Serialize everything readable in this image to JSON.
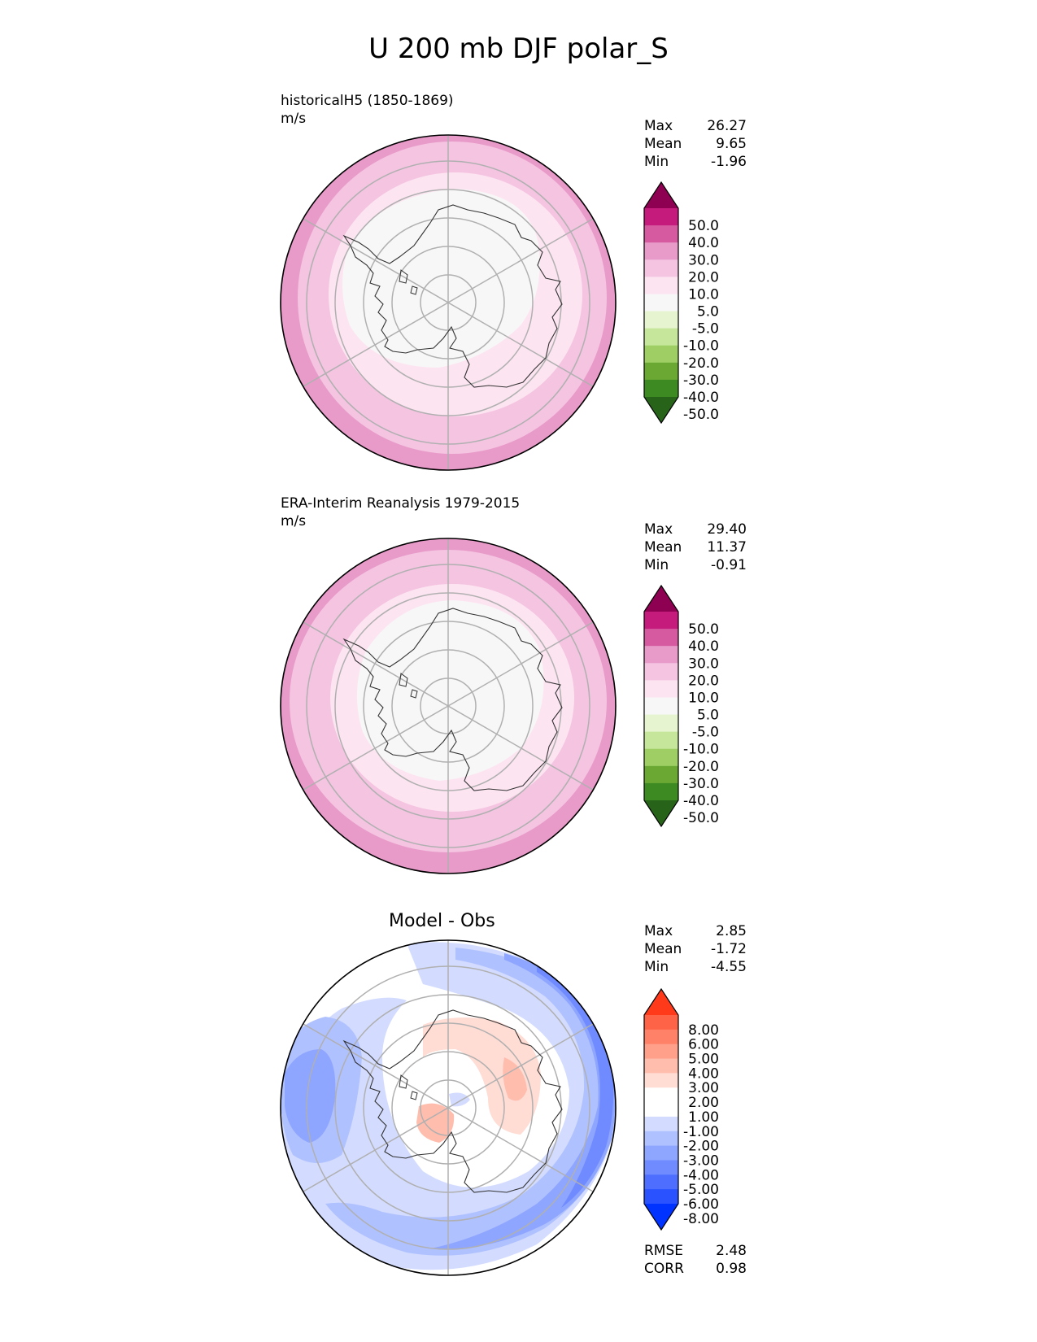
{
  "title": "U 200 mb DJF polar_S",
  "palettes": {
    "pink_green": [
      "#276419",
      "#4d9221",
      "#7fbc41",
      "#b8e186",
      "#e6f5d0",
      "#f7f7f7",
      "#fde0ef",
      "#f1b6da",
      "#de77ae",
      "#c51b7d",
      "#8e0152"
    ],
    "full_pink_green": [
      "#276419",
      "#3a7a1d",
      "#4d9221",
      "#66a730",
      "#7fbc41",
      "#9fcf64",
      "#c6e69c",
      "#e6f5d0",
      "#f7f7f7",
      "#fce6f1",
      "#f6c4e0",
      "#eca0ca",
      "#de77ae",
      "#d14a97",
      "#c51b7d",
      "#8e0152"
    ],
    "blue_red": [
      "#0033ff",
      "#2a52ff",
      "#4d6eff",
      "#6f8bff",
      "#8ea6ff",
      "#b0c1ff",
      "#d3dcff",
      "#ffffff",
      "#ffdcd4",
      "#ffbdae",
      "#ffa08b",
      "#ff8268",
      "#ff6347",
      "#ff3a1b"
    ]
  },
  "panels": [
    {
      "title": "historicalH5 (1850-1869)",
      "units": "m/s",
      "stats": [
        {
          "label": "Max",
          "value": "26.27"
        },
        {
          "label": "Mean",
          "value": "9.65"
        },
        {
          "label": "Min",
          "value": "-1.96"
        }
      ],
      "colorbar": {
        "labels": [
          "50.0",
          "40.0",
          "30.0",
          "20.0",
          "10.0",
          "5.0",
          "-5.0",
          "-10.0",
          "-20.0",
          "-30.0",
          "-40.0",
          "-50.0"
        ],
        "colors": [
          "#8e0152",
          "#c51b7d",
          "#d55a9f",
          "#e89ac9",
          "#f4c4e1",
          "#fde4f1",
          "#f7f7f7",
          "#e6f5d0",
          "#c6e69c",
          "#9fcf64",
          "#6aa833",
          "#3d8a22",
          "#276419"
        ]
      },
      "chart_data": {
        "type": "heatmap",
        "projection": "south-polar-stereographic",
        "rings": [
          {
            "range": "20-30",
            "color": "#e89ac9"
          },
          {
            "range": "10-20",
            "color": "#f4c4e1"
          },
          {
            "range": "5-10",
            "color": "#fde4f1"
          },
          {
            "range": "-5-5",
            "color": "#f7f7f7"
          }
        ]
      }
    },
    {
      "title": "ERA-Interim Reanalysis 1979-2015",
      "units": "m/s",
      "stats": [
        {
          "label": "Max",
          "value": "29.40"
        },
        {
          "label": "Mean",
          "value": "11.37"
        },
        {
          "label": "Min",
          "value": "-0.91"
        }
      ],
      "colorbar": {
        "labels": [
          "50.0",
          "40.0",
          "30.0",
          "20.0",
          "10.0",
          "5.0",
          "-5.0",
          "-10.0",
          "-20.0",
          "-30.0",
          "-40.0",
          "-50.0"
        ],
        "colors": [
          "#8e0152",
          "#c51b7d",
          "#d55a9f",
          "#e89ac9",
          "#f4c4e1",
          "#fde4f1",
          "#f7f7f7",
          "#e6f5d0",
          "#c6e69c",
          "#9fcf64",
          "#6aa833",
          "#3d8a22",
          "#276419"
        ]
      },
      "chart_data": {
        "type": "heatmap",
        "projection": "south-polar-stereographic",
        "rings": [
          {
            "range": "20-30",
            "color": "#e89ac9"
          },
          {
            "range": "10-20",
            "color": "#f4c4e1"
          },
          {
            "range": "5-10",
            "color": "#fde4f1"
          },
          {
            "range": "-5-5",
            "color": "#f7f7f7"
          }
        ]
      }
    },
    {
      "title": "Model - Obs",
      "stats": [
        {
          "label": "Max",
          "value": "2.85"
        },
        {
          "label": "Mean",
          "value": "-1.72"
        },
        {
          "label": "Min",
          "value": "-4.55"
        }
      ],
      "extra_stats": [
        {
          "label": "RMSE",
          "value": "2.48"
        },
        {
          "label": "CORR",
          "value": "0.98"
        }
      ],
      "colorbar": {
        "labels": [
          "8.00",
          "6.00",
          "5.00",
          "4.00",
          "3.00",
          "2.00",
          "1.00",
          "-1.00",
          "-2.00",
          "-3.00",
          "-4.00",
          "-5.00",
          "-6.00",
          "-8.00"
        ],
        "colors": [
          "#ff3a1b",
          "#ff6347",
          "#ff8268",
          "#ffa08b",
          "#ffbdae",
          "#ffdcd4",
          "#ffffff",
          "#ffffff",
          "#d3dcff",
          "#b0c1ff",
          "#8ea6ff",
          "#6f8bff",
          "#4d6eff",
          "#2a52ff",
          "#0033ff"
        ]
      },
      "chart_data": {
        "type": "heatmap",
        "projection": "south-polar-stereographic",
        "fields": [
          {
            "range": "-5--4",
            "color": "#6f8bff"
          },
          {
            "range": "-4--3",
            "color": "#8ea6ff"
          },
          {
            "range": "-3--2",
            "color": "#b0c1ff"
          },
          {
            "range": "-2--1",
            "color": "#d3dcff"
          },
          {
            "range": "1-2",
            "color": "#ffdcd4"
          },
          {
            "range": "2-3",
            "color": "#ffbdae"
          }
        ]
      }
    }
  ]
}
